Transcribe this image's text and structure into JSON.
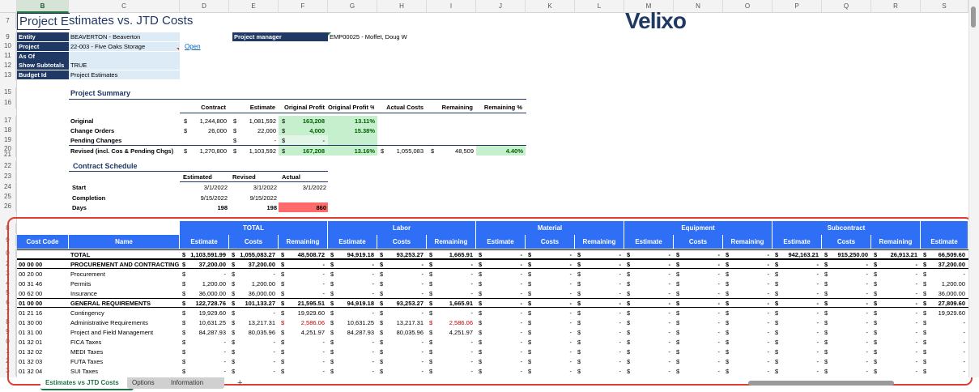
{
  "columns": [
    "B",
    "C",
    "D",
    "E",
    "F",
    "G",
    "H",
    "I",
    "J",
    "K",
    "L",
    "M",
    "N",
    "O",
    "P",
    "Q",
    "R",
    "S"
  ],
  "title": "Project Estimates vs. JTD Costs",
  "logo": "Velixo",
  "params": [
    {
      "label": "Entity",
      "value": "BEAVERTON - Beaverton"
    },
    {
      "label": "Project",
      "value": "22-003 - Five Oaks Storage"
    },
    {
      "label": "As Of",
      "value": ""
    },
    {
      "label": "Show Subtotals",
      "value": "TRUE"
    },
    {
      "label": "Budget Id",
      "value": "Project Estimates"
    }
  ],
  "open_link": "Open",
  "project_manager": {
    "label": "Project manager",
    "value": "EMP00025 - Moffet, Doug W"
  },
  "summary": {
    "title": "Project Summary",
    "headers": [
      "Contract",
      "Estimate",
      "Original Profit",
      "Original Profit %",
      "Actual Costs",
      "Remaining",
      "Remaining %"
    ],
    "rows": [
      {
        "label": "Original",
        "contract": "1,244,800",
        "estimate": "1,081,592",
        "profit": "163,208",
        "profit_pct": "13.11%"
      },
      {
        "label": "Change Orders",
        "contract": "26,000",
        "estimate": "22,000",
        "profit": "4,000",
        "profit_pct": "15.38%"
      },
      {
        "label": "Pending Changes",
        "contract": "",
        "estimate": "-",
        "profit": "-",
        "profit_pct": ""
      },
      {
        "label": "Revised (incl. Cos & Pending Chgs)",
        "contract": "1,270,800",
        "estimate": "1,103,592",
        "profit": "167,208",
        "profit_pct": "13.16%",
        "actual": "1,055,083",
        "remaining": "48,509",
        "remaining_pct": "4.40%"
      }
    ]
  },
  "schedule": {
    "title": "Contract Schedule",
    "headers": [
      "Estimated",
      "Revised",
      "Actual"
    ],
    "rows": [
      {
        "label": "Start",
        "est": "3/1/2022",
        "rev": "3/1/2022",
        "act": "3/1/2022"
      },
      {
        "label": "Completion",
        "est": "9/15/2022",
        "rev": "9/15/2022",
        "act": ""
      },
      {
        "label": "Days",
        "est": "198",
        "rev": "198",
        "act": "860"
      }
    ]
  },
  "grid": {
    "groups": [
      "TOTAL",
      "Labor",
      "Material",
      "Equipment",
      "Subcontract"
    ],
    "col_headers": [
      "Cost Code",
      "Name",
      "Estimate",
      "Costs",
      "Remaining",
      "Estimate",
      "Costs",
      "Remaining",
      "Estimate",
      "Costs",
      "Remaining",
      "Estimate",
      "Costs",
      "Remaining",
      "Estimate",
      "Costs",
      "Remaining",
      "Estimate"
    ],
    "rows": [
      {
        "code": "",
        "name": "TOTAL",
        "bold": true,
        "v": [
          "$1,103,591.99",
          "$1,055,083.27",
          "$ 48,508.72",
          "$ 94,919.18",
          "$ 93,253.27",
          "$ 1,665.91",
          "$ -",
          "$ -",
          "$ -",
          "$ -",
          "$ -",
          "$ -",
          "$ 942,163.21",
          "$ 915,250.00",
          "$ 26,913.21",
          "$ 66,509.60"
        ]
      },
      {
        "code": "00 00 00",
        "name": "PROCUREMENT AND CONTRACTING",
        "bold": true,
        "v": [
          "$ 37,200.00",
          "$ 37,200.00",
          "$ -",
          "$ -",
          "$ -",
          "$ -",
          "$ -",
          "$ -",
          "$ -",
          "$ -",
          "$ -",
          "$ -",
          "$ -",
          "$ -",
          "$ -",
          "$ 37,200.00"
        ]
      },
      {
        "code": "00 20 00",
        "name": "Procurement",
        "v": [
          "$ -",
          "$ -",
          "$ -",
          "$ -",
          "$ -",
          "$ -",
          "$ -",
          "$ -",
          "$ -",
          "$ -",
          "$ -",
          "$ -",
          "$ -",
          "$ -",
          "$ -",
          "$ -"
        ]
      },
      {
        "code": "00 31 46",
        "name": "Permits",
        "v": [
          "$ 1,200.00",
          "$ 1,200.00",
          "$ -",
          "$ -",
          "$ -",
          "$ -",
          "$ -",
          "$ -",
          "$ -",
          "$ -",
          "$ -",
          "$ -",
          "$ -",
          "$ -",
          "$ -",
          "$ 1,200.00"
        ]
      },
      {
        "code": "00 62 00",
        "name": "Insurance",
        "v": [
          "$ 36,000.00",
          "$ 36,000.00",
          "$ -",
          "$ -",
          "$ -",
          "$ -",
          "$ -",
          "$ -",
          "$ -",
          "$ -",
          "$ -",
          "$ -",
          "$ -",
          "$ -",
          "$ -",
          "$ 36,000.00"
        ]
      },
      {
        "code": "01 00 00",
        "name": "GENERAL REQUIREMENTS",
        "bold": true,
        "v": [
          "$ 122,728.76",
          "$ 101,133.27",
          "$ 21,595.51",
          "$ 94,919.18",
          "$ 93,253.27",
          "$ 1,665.91",
          "$ -",
          "$ -",
          "$ -",
          "$ -",
          "$ -",
          "$ -",
          "$ -",
          "$ -",
          "$ -",
          "$ 27,809.60"
        ]
      },
      {
        "code": "01 21 16",
        "name": "Contingency",
        "v": [
          "$ 19,929.60",
          "$ -",
          "$ 19,929.60",
          "$ -",
          "$ -",
          "$ -",
          "$ -",
          "$ -",
          "$ -",
          "$ -",
          "$ -",
          "$ -",
          "$ -",
          "$ -",
          "$ -",
          "$ 19,929.60"
        ]
      },
      {
        "code": "01 30 00",
        "name": "Administrative Requirements",
        "v": [
          "$ 10,631.25",
          "$ 13,217.31",
          "$ 2,586.06",
          "$ 10,631.25",
          "$ 13,217.31",
          "$ 2,586.06",
          "$ -",
          "$ -",
          "$ -",
          "$ -",
          "$ -",
          "$ -",
          "$ -",
          "$ -",
          "$ -",
          "$ -"
        ],
        "red": [
          2,
          5
        ]
      },
      {
        "code": "01 31 00",
        "name": "Project and Field Management",
        "v": [
          "$ 84,287.93",
          "$ 80,035.96",
          "$ 4,251.97",
          "$ 84,287.93",
          "$ 80,035.96",
          "$ 4,251.97",
          "$ -",
          "$ -",
          "$ -",
          "$ -",
          "$ -",
          "$ -",
          "$ -",
          "$ -",
          "$ -",
          "$ -"
        ]
      },
      {
        "code": "01 32 01",
        "name": "FICA Taxes",
        "v": [
          "$ -",
          "$ -",
          "$ -",
          "$ -",
          "$ -",
          "$ -",
          "$ -",
          "$ -",
          "$ -",
          "$ -",
          "$ -",
          "$ -",
          "$ -",
          "$ -",
          "$ -",
          "$ -"
        ]
      },
      {
        "code": "01 32 02",
        "name": "MEDI Taxes",
        "v": [
          "$ -",
          "$ -",
          "$ -",
          "$ -",
          "$ -",
          "$ -",
          "$ -",
          "$ -",
          "$ -",
          "$ -",
          "$ -",
          "$ -",
          "$ -",
          "$ -",
          "$ -",
          "$ -"
        ]
      },
      {
        "code": "01 32 03",
        "name": "FUTA Taxes",
        "v": [
          "$ -",
          "$ -",
          "$ -",
          "$ -",
          "$ -",
          "$ -",
          "$ -",
          "$ -",
          "$ -",
          "$ -",
          "$ -",
          "$ -",
          "$ -",
          "$ -",
          "$ -",
          "$ -"
        ]
      },
      {
        "code": "01 32 04",
        "name": "SUI Taxes",
        "v": [
          "$ -",
          "$ -",
          "$ -",
          "$ -",
          "$ -",
          "$ -",
          "$ -",
          "$ -",
          "$ -",
          "$ -",
          "$ -",
          "$ -",
          "$ -",
          "$ -",
          "$ -",
          "$ -"
        ]
      }
    ]
  },
  "tabs": [
    "Estimates vs JTD Costs",
    "Options",
    "Information"
  ],
  "add_sheet": "+",
  "colors": {
    "accent_blue": "#2f6ff5",
    "navy": "#1f3864",
    "highlight": "#e03c31",
    "green": "#c6efce"
  }
}
